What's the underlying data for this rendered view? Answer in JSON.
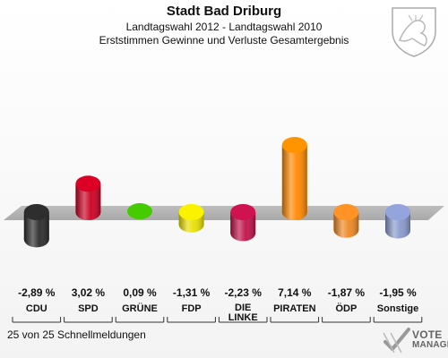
{
  "header": {
    "title": "Stadt Bad Driburg",
    "subtitle": "Landtagswahl 2012 - Landtagswahl 2010",
    "description": "Erststimmen Gewinne und Verluste Gesamtergebnis"
  },
  "footer": {
    "status": "25 von 25 Schnellmeldungen"
  },
  "brand": {
    "line1": "VOTE",
    "line2": "MANAGER"
  },
  "chart_data": {
    "type": "bar",
    "title": "Erststimmen Gewinne und Verluste Gesamtergebnis",
    "categories": [
      "CDU",
      "SPD",
      "GRÜNE",
      "FDP",
      "DIE LINKE",
      "PIRATEN",
      "ÖDP",
      "Sonstige"
    ],
    "category_lines": [
      [
        "CDU"
      ],
      [
        "SPD"
      ],
      [
        "GRÜNE"
      ],
      [
        "FDP"
      ],
      [
        "DIE",
        "LINKE"
      ],
      [
        "PIRATEN"
      ],
      [
        "ÖDP"
      ],
      [
        "Sonstige"
      ]
    ],
    "values": [
      -2.89,
      3.02,
      0.09,
      -1.31,
      -2.23,
      7.14,
      -1.87,
      -1.95
    ],
    "value_labels": [
      "-2,89 %",
      "3,02 %",
      "0,09 %",
      "-1,31 %",
      "-2,23 %",
      "7,14 %",
      "-1,87 %",
      "-1,95 %"
    ],
    "colors": [
      "#2b2b2b",
      "#cc0022",
      "#44cc00",
      "#e8e000",
      "#c0124a",
      "#ff8800",
      "#ee8822",
      "#8899cc"
    ],
    "ylim": [
      -3.5,
      7.5
    ],
    "grid": false,
    "legend": "none"
  }
}
